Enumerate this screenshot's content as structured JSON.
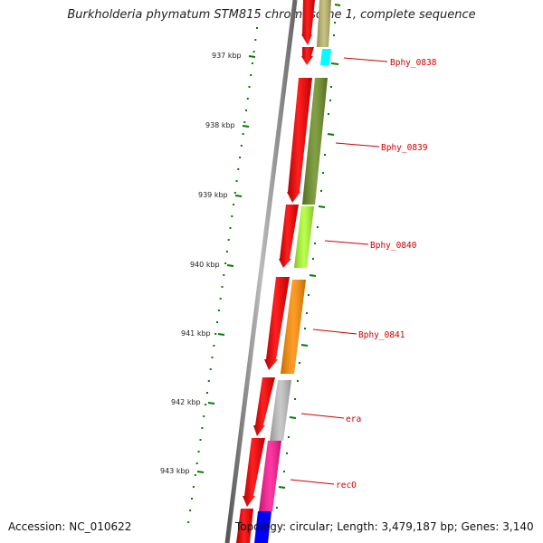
{
  "title": "Burkholderia phymatum STM815 chromosome 1, complete sequence",
  "footer": {
    "accession": "Accession: NC_010622",
    "topology": "Topology: circular; Length: 3,479,187 bp; Genes: 3,140"
  },
  "ticks": [
    "937 kbp",
    "938 kbp",
    "939 kbp",
    "940 kbp",
    "941 kbp",
    "942 kbp",
    "943 kbp"
  ],
  "genes": [
    {
      "name": "Bphy_0838",
      "color": "#00ffff"
    },
    {
      "name": "Bphy_0839",
      "color": "#6b8e23"
    },
    {
      "name": "Bphy_0840",
      "color": "#adff2f"
    },
    {
      "name": "Bphy_0841",
      "color": "#ff8c00"
    },
    {
      "name": "era",
      "color": "#c0c0c0"
    },
    {
      "name": "recO",
      "color": "#ff1493"
    }
  ],
  "colors": {
    "cds": "#ff0000",
    "tick": "#008000",
    "label": "#cc0000",
    "backbone": "#808080",
    "top_feature": "#bdb76b",
    "bottom_feature": "#0000ff"
  }
}
